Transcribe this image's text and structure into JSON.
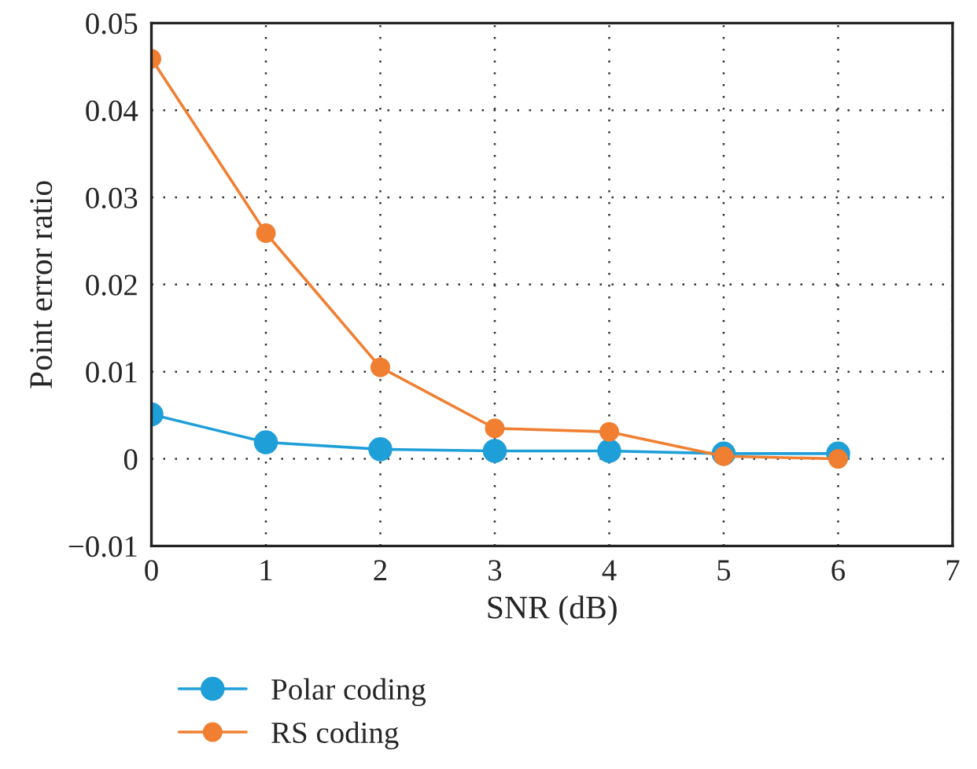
{
  "chart_data": {
    "type": "line",
    "xlabel": "SNR (dB)",
    "ylabel": "Point error ratio",
    "x": [
      0,
      1,
      2,
      3,
      4,
      5,
      6
    ],
    "series": [
      {
        "name": "Polar coding",
        "color": "#1f9fd8",
        "values": [
          0.0051,
          0.0019,
          0.0011,
          0.0009,
          0.0009,
          0.0006,
          0.0006
        ]
      },
      {
        "name": "RS coding",
        "color": "#f07f32",
        "values": [
          0.0459,
          0.0259,
          0.0105,
          0.0035,
          0.0031,
          0.0003,
          0.0
        ]
      }
    ],
    "xlim": [
      0,
      7
    ],
    "xticks": [
      0,
      1,
      2,
      3,
      4,
      5,
      6,
      7
    ],
    "ylim": [
      -0.01,
      0.05
    ],
    "yticks": [
      {
        "value": -0.01,
        "label": "−0.01"
      },
      0,
      0.01,
      0.02,
      0.03,
      0.04,
      0.05
    ],
    "grid": true,
    "legend": "bottom left",
    "marker": "circle",
    "line_style": "solid"
  }
}
